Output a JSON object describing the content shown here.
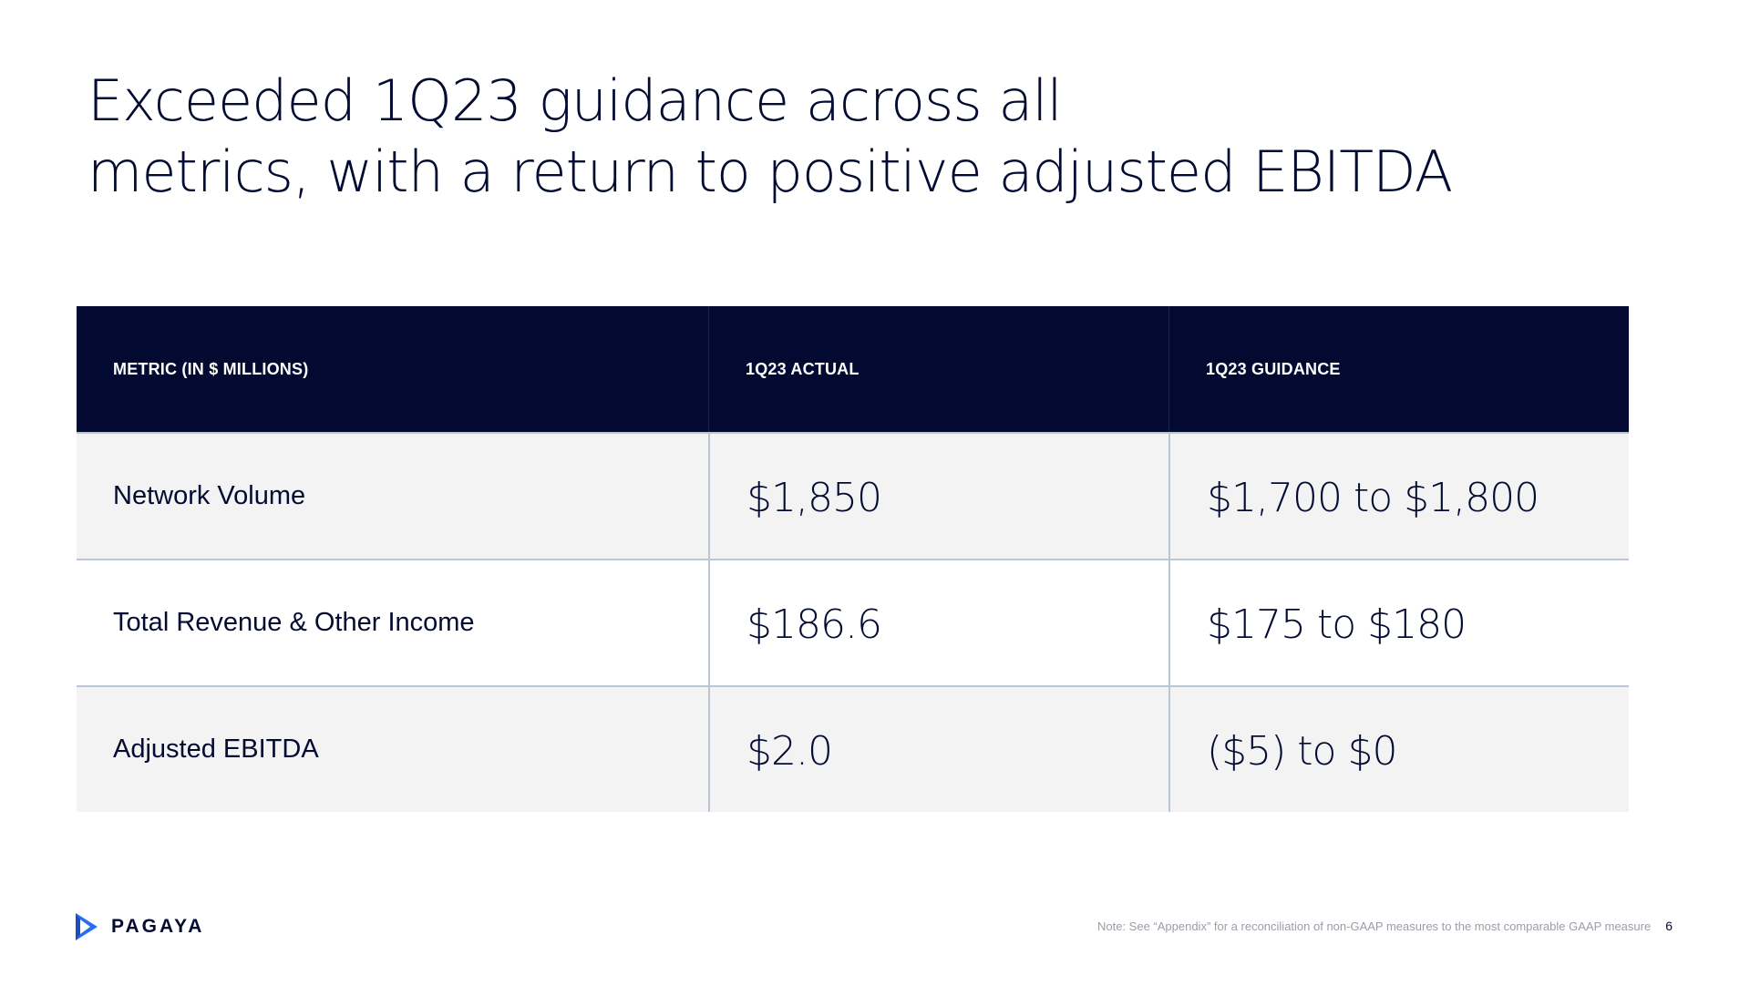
{
  "title": {
    "line1": "Exceeded 1Q23 guidance across all",
    "line2": "metrics, with a return to positive adjusted EBITDA"
  },
  "table": {
    "headers": [
      "METRIC (IN $ MILLIONS)",
      "1Q23 ACTUAL",
      "1Q23 GUIDANCE"
    ],
    "rows": [
      {
        "metric": "Network Volume",
        "actual": "$1,850",
        "guidance": "$1,700 to $1,800"
      },
      {
        "metric": "Total Revenue & Other Income",
        "actual": "$186.6",
        "guidance": "$175 to $180"
      },
      {
        "metric": "Adjusted EBITDA",
        "actual": "$2.0",
        "guidance": "($5) to $0"
      }
    ]
  },
  "footer": {
    "logo_text": "PAGAYA",
    "note": "Note: See “Appendix” for a reconciliation of non-GAAP measures to the most comparable GAAP measure",
    "page_number": "6"
  },
  "colors": {
    "navy": "#020a31",
    "text": "#040b33",
    "row_shade": "#f3f3f4",
    "grid_line": "#b9c6d6",
    "logo_blue": "#2a6df4"
  }
}
